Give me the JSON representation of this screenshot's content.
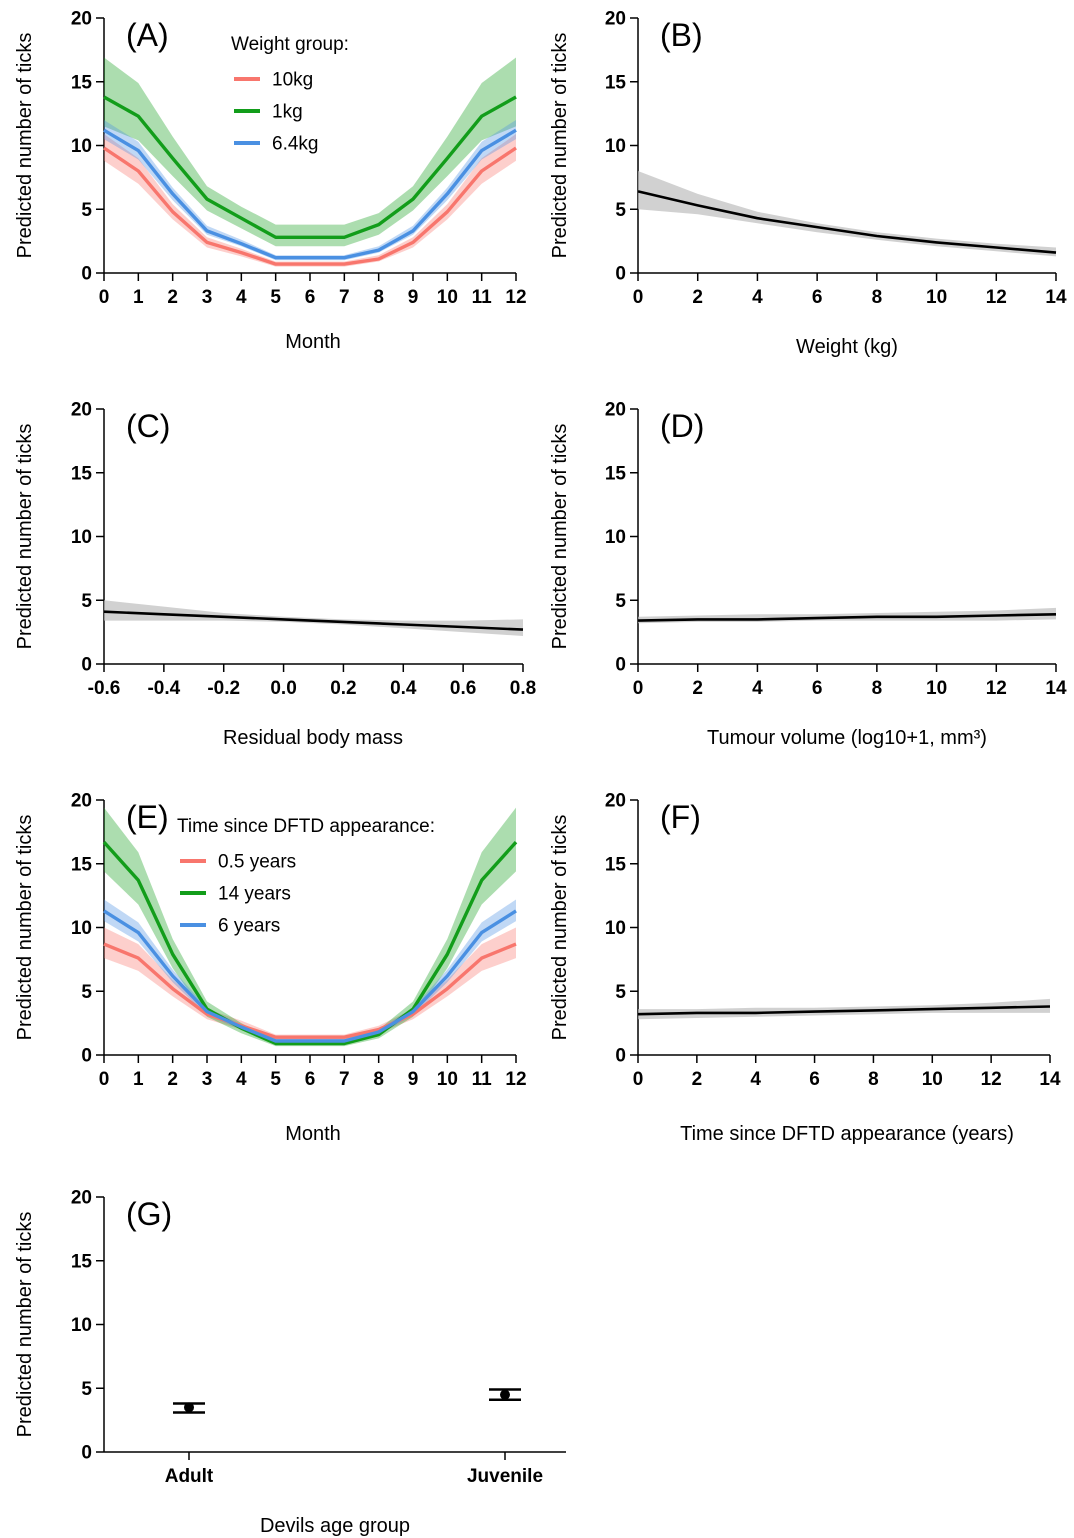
{
  "figure": {
    "background": "#ffffff",
    "ribbon_color": "#bdbdbd"
  },
  "chart_data": [
    {
      "id": "A",
      "type": "line",
      "panel_label": "(A)",
      "xlabel": "Month",
      "ylabel": "Predicted number of ticks",
      "xlim": [
        0,
        12
      ],
      "ylim": [
        0,
        20
      ],
      "x_ticks": [
        "0",
        "1",
        "2",
        "3",
        "4",
        "5",
        "6",
        "7",
        "8",
        "9",
        "10",
        "11",
        "12"
      ],
      "y_ticks": [
        "0",
        "5",
        "10",
        "15",
        "20"
      ],
      "legend": {
        "title": "Weight group:",
        "position": "top-center"
      },
      "x": [
        0,
        1,
        2,
        3,
        4,
        5,
        6,
        7,
        8,
        9,
        10,
        11,
        12
      ],
      "series": [
        {
          "name": "10kg",
          "color": "#f8766d",
          "values": [
            9.8,
            8.0,
            4.8,
            2.4,
            1.6,
            0.7,
            0.7,
            0.7,
            1.1,
            2.4,
            4.8,
            8.0,
            9.8
          ],
          "lower": [
            8.8,
            7.0,
            4.2,
            2.0,
            1.3,
            0.5,
            0.5,
            0.5,
            0.9,
            2.0,
            4.2,
            7.0,
            8.8
          ],
          "upper": [
            10.9,
            9.0,
            5.4,
            2.8,
            1.9,
            0.9,
            0.9,
            0.9,
            1.4,
            2.8,
            5.4,
            9.0,
            10.9
          ]
        },
        {
          "name": "1kg",
          "color": "#129d1a",
          "values": [
            13.8,
            12.3,
            9.0,
            5.8,
            4.3,
            2.8,
            2.8,
            2.8,
            3.8,
            5.8,
            9.0,
            12.3,
            13.8
          ],
          "lower": [
            11.5,
            10.4,
            7.6,
            4.9,
            3.5,
            2.1,
            2.1,
            2.1,
            3.0,
            4.9,
            7.6,
            10.4,
            11.5
          ],
          "upper": [
            16.9,
            14.9,
            10.7,
            6.8,
            5.2,
            3.8,
            3.8,
            3.8,
            4.7,
            6.8,
            10.7,
            14.9,
            16.9
          ]
        },
        {
          "name": "6.4kg",
          "color": "#4a90e2",
          "values": [
            11.2,
            9.6,
            6.2,
            3.3,
            2.3,
            1.2,
            1.2,
            1.2,
            1.8,
            3.3,
            6.2,
            9.6,
            11.2
          ],
          "lower": [
            10.5,
            8.9,
            5.7,
            3.0,
            2.1,
            1.0,
            1.0,
            1.0,
            1.6,
            3.0,
            5.7,
            8.9,
            10.5
          ],
          "upper": [
            12.0,
            10.3,
            6.7,
            3.7,
            2.6,
            1.4,
            1.4,
            1.4,
            2.1,
            3.7,
            6.7,
            10.3,
            12.0
          ]
        }
      ]
    },
    {
      "id": "B",
      "type": "line",
      "panel_label": "(B)",
      "xlabel": "Weight (kg)",
      "ylabel": "Predicted number of ticks",
      "xlim": [
        0,
        14
      ],
      "ylim": [
        0,
        20
      ],
      "x_ticks": [
        "0",
        "2",
        "4",
        "6",
        "8",
        "10",
        "12",
        "14"
      ],
      "y_ticks": [
        "0",
        "5",
        "10",
        "15",
        "20"
      ],
      "x": [
        0,
        2,
        4,
        6,
        8,
        10,
        12,
        14
      ],
      "series": [
        {
          "color": "#000000",
          "values": [
            6.4,
            5.3,
            4.3,
            3.6,
            2.9,
            2.4,
            2.0,
            1.6
          ],
          "lower": [
            5.0,
            4.6,
            3.9,
            3.2,
            2.6,
            2.1,
            1.7,
            1.3
          ],
          "upper": [
            8.0,
            6.2,
            4.8,
            3.9,
            3.2,
            2.7,
            2.3,
            2.0
          ]
        }
      ]
    },
    {
      "id": "C",
      "type": "line",
      "panel_label": "(C)",
      "xlabel": "Residual body mass",
      "ylabel": "Predicted number of ticks",
      "xlim": [
        -0.6,
        0.8
      ],
      "ylim": [
        0,
        20
      ],
      "x_ticks": [
        "-0.6",
        "-0.4",
        "-0.2",
        "0.0",
        "0.2",
        "0.4",
        "0.6",
        "0.8"
      ],
      "y_ticks": [
        "0",
        "5",
        "10",
        "15",
        "20"
      ],
      "x": [
        -0.6,
        -0.4,
        -0.2,
        0.0,
        0.2,
        0.4,
        0.6,
        0.8
      ],
      "series": [
        {
          "color": "#000000",
          "values": [
            4.1,
            3.9,
            3.7,
            3.5,
            3.3,
            3.1,
            2.9,
            2.7
          ],
          "lower": [
            3.4,
            3.4,
            3.4,
            3.3,
            3.1,
            2.8,
            2.5,
            2.2
          ],
          "upper": [
            5.0,
            4.5,
            4.0,
            3.7,
            3.5,
            3.4,
            3.4,
            3.5
          ]
        }
      ]
    },
    {
      "id": "D",
      "type": "line",
      "panel_label": "(D)",
      "xlabel": "Tumour volume (log10+1, mm³)",
      "ylabel": "Predicted number of ticks",
      "xlim": [
        0,
        14
      ],
      "ylim": [
        0,
        20
      ],
      "x_ticks": [
        "0",
        "2",
        "4",
        "6",
        "8",
        "10",
        "12",
        "14"
      ],
      "y_ticks": [
        "0",
        "5",
        "10",
        "15",
        "20"
      ],
      "x": [
        0,
        2,
        4,
        6,
        8,
        10,
        12,
        14
      ],
      "series": [
        {
          "color": "#000000",
          "values": [
            3.4,
            3.5,
            3.5,
            3.6,
            3.7,
            3.7,
            3.8,
            3.9
          ],
          "lower": [
            3.2,
            3.3,
            3.3,
            3.4,
            3.4,
            3.4,
            3.4,
            3.5
          ],
          "upper": [
            3.7,
            3.8,
            3.9,
            3.9,
            4.0,
            4.1,
            4.2,
            4.4
          ]
        }
      ]
    },
    {
      "id": "E",
      "type": "line",
      "panel_label": "(E)",
      "xlabel": "Month",
      "ylabel": "Predicted number of ticks",
      "xlim": [
        0,
        12
      ],
      "ylim": [
        0,
        20
      ],
      "x_ticks": [
        "0",
        "1",
        "2",
        "3",
        "4",
        "5",
        "6",
        "7",
        "8",
        "9",
        "10",
        "11",
        "12"
      ],
      "y_ticks": [
        "0",
        "5",
        "10",
        "15",
        "20"
      ],
      "legend": {
        "title": "Time since DFTD appearance:",
        "position": "top-center"
      },
      "x": [
        0,
        1,
        2,
        3,
        4,
        5,
        6,
        7,
        8,
        9,
        10,
        11,
        12
      ],
      "series": [
        {
          "name": "0.5 years",
          "color": "#f8766d",
          "values": [
            8.7,
            7.6,
            5.2,
            3.2,
            2.3,
            1.4,
            1.4,
            1.4,
            2.0,
            3.2,
            5.2,
            7.6,
            8.7
          ],
          "lower": [
            7.6,
            6.6,
            4.6,
            2.8,
            2.0,
            1.2,
            1.2,
            1.2,
            1.7,
            2.8,
            4.6,
            6.6,
            7.6
          ],
          "upper": [
            10.0,
            8.7,
            5.9,
            3.6,
            2.7,
            1.6,
            1.6,
            1.6,
            2.3,
            3.6,
            5.9,
            8.7,
            10.0
          ]
        },
        {
          "name": "14 years",
          "color": "#129d1a",
          "values": [
            16.7,
            13.7,
            7.9,
            3.6,
            2.1,
            0.9,
            0.9,
            0.9,
            1.6,
            3.6,
            7.9,
            13.7,
            16.7
          ],
          "lower": [
            14.4,
            11.8,
            6.8,
            3.0,
            1.7,
            0.7,
            0.7,
            0.7,
            1.3,
            3.0,
            6.8,
            11.8,
            14.4
          ],
          "upper": [
            19.4,
            15.9,
            9.1,
            4.2,
            2.5,
            1.1,
            1.1,
            1.1,
            2.0,
            4.2,
            9.1,
            15.9,
            19.4
          ]
        },
        {
          "name": "6 years",
          "color": "#4a90e2",
          "values": [
            11.3,
            9.6,
            6.2,
            3.4,
            2.2,
            1.1,
            1.1,
            1.1,
            1.8,
            3.4,
            6.2,
            9.6,
            11.3
          ],
          "lower": [
            10.5,
            8.9,
            5.7,
            3.1,
            2.0,
            1.0,
            1.0,
            1.0,
            1.6,
            3.1,
            5.7,
            8.9,
            10.5
          ],
          "upper": [
            12.2,
            10.4,
            6.7,
            3.7,
            2.4,
            1.3,
            1.3,
            1.3,
            2.0,
            3.7,
            6.7,
            10.4,
            12.2
          ]
        }
      ]
    },
    {
      "id": "F",
      "type": "line",
      "panel_label": "(F)",
      "xlabel": "Time since DFTD appearance (years)",
      "ylabel": "Predicted number of ticks",
      "xlim": [
        0,
        14
      ],
      "ylim": [
        0,
        20
      ],
      "x_ticks": [
        "0",
        "2",
        "4",
        "6",
        "8",
        "10",
        "12",
        "14"
      ],
      "y_ticks": [
        "0",
        "5",
        "10",
        "15",
        "20"
      ],
      "x": [
        0,
        2,
        4,
        6,
        8,
        10,
        12,
        14
      ],
      "series": [
        {
          "color": "#000000",
          "values": [
            3.2,
            3.3,
            3.3,
            3.4,
            3.5,
            3.6,
            3.7,
            3.8
          ],
          "lower": [
            2.8,
            2.9,
            3.0,
            3.1,
            3.2,
            3.3,
            3.3,
            3.3
          ],
          "upper": [
            3.6,
            3.6,
            3.7,
            3.7,
            3.8,
            3.9,
            4.1,
            4.4
          ]
        }
      ]
    },
    {
      "id": "G",
      "type": "scatter",
      "panel_label": "(G)",
      "xlabel": "Devils age group",
      "ylabel": "Predicted number of ticks",
      "ylim": [
        0,
        20
      ],
      "y_ticks": [
        "0",
        "5",
        "10",
        "15",
        "20"
      ],
      "categories": [
        "Adult",
        "Juvenile"
      ],
      "values": [
        3.5,
        4.5
      ],
      "lower": [
        3.1,
        4.1
      ],
      "upper": [
        3.8,
        4.9
      ]
    }
  ]
}
